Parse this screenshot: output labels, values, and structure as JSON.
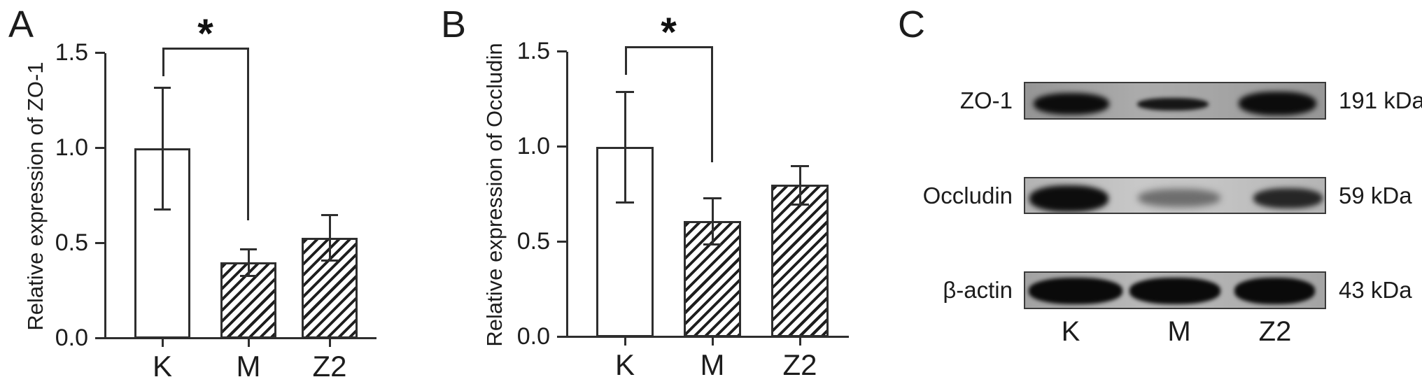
{
  "figure": {
    "background": "#ffffff",
    "ink_color": "#2e2e2e",
    "panel_labels": {
      "a": "A",
      "b": "B",
      "c": "C"
    }
  },
  "chart_data": [
    {
      "type": "bar",
      "panel": "A",
      "title": "",
      "ylabel": "Relative expression of ZO-1",
      "xlabel": "",
      "categories": [
        "K",
        "M",
        "Z2"
      ],
      "values": [
        1.0,
        0.4,
        0.53
      ],
      "errors": [
        0.32,
        0.07,
        0.12
      ],
      "ylim": [
        0,
        1.5
      ],
      "yticks": [
        "0.0",
        "0.5",
        "1.0",
        "1.5"
      ],
      "bar_fills": [
        "plain",
        "hatch",
        "hatch"
      ],
      "grid": false,
      "legend": null,
      "significance": {
        "label": "*",
        "from": "K",
        "to": "M",
        "bracket_y": 1.53,
        "left_drop_to": 1.38,
        "right_drop_to": 0.62
      }
    },
    {
      "type": "bar",
      "panel": "B",
      "title": "",
      "ylabel": "Relative expression of Occludin",
      "xlabel": "",
      "categories": [
        "K",
        "M",
        "Z2"
      ],
      "values": [
        1.0,
        0.61,
        0.8
      ],
      "errors": [
        0.29,
        0.12,
        0.1
      ],
      "ylim": [
        0,
        1.5
      ],
      "yticks": [
        "0.0",
        "0.5",
        "1.0",
        "1.5"
      ],
      "bar_fills": [
        "plain",
        "hatch",
        "hatch"
      ],
      "grid": false,
      "legend": null,
      "significance": {
        "label": "*",
        "from": "K",
        "to": "M",
        "bracket_y": 1.53,
        "left_drop_to": 1.38,
        "right_drop_to": 0.92
      }
    }
  ],
  "blot_panel": {
    "panel": "C",
    "lanes": [
      "K",
      "M",
      "Z2"
    ],
    "rows": [
      {
        "protein": "ZO-1",
        "mw": "191 kDa",
        "strip_shade": "#a2a2a2",
        "bands": [
          {
            "lane": "K",
            "x": 0.028,
            "w": 0.25,
            "y": 0.26,
            "h": 0.58,
            "color": "#0c0c0c",
            "blur": 4
          },
          {
            "lane": "M",
            "x": 0.37,
            "w": 0.236,
            "y": 0.38,
            "h": 0.35,
            "color": "#161616",
            "blur": 3
          },
          {
            "lane": "Z2",
            "x": 0.705,
            "w": 0.258,
            "y": 0.22,
            "h": 0.64,
            "color": "#0c0c0c",
            "blur": 4
          }
        ]
      },
      {
        "protein": "Occludin",
        "mw": "59 kDa",
        "strip_shade": "#c2c2c2",
        "bands": [
          {
            "lane": "K",
            "x": 0.014,
            "w": 0.262,
            "y": 0.18,
            "h": 0.72,
            "color": "#0d0d0d",
            "blur": 4
          },
          {
            "lane": "M",
            "x": 0.373,
            "w": 0.272,
            "y": 0.28,
            "h": 0.5,
            "color": "#6e6e6e",
            "blur": 5
          },
          {
            "lane": "Z2",
            "x": 0.755,
            "w": 0.228,
            "y": 0.26,
            "h": 0.55,
            "color": "#262626",
            "blur": 4
          }
        ]
      },
      {
        "protein": "β-actin",
        "mw": "43 kDa",
        "strip_shade": "#b0b0b0",
        "bands": [
          {
            "lane": "K",
            "x": 0.012,
            "w": 0.31,
            "y": 0.13,
            "h": 0.7,
            "color": "#0a0a0a",
            "blur": 3
          },
          {
            "lane": "M",
            "x": 0.345,
            "w": 0.302,
            "y": 0.13,
            "h": 0.7,
            "color": "#0a0a0a",
            "blur": 3
          },
          {
            "lane": "Z2",
            "x": 0.692,
            "w": 0.266,
            "y": 0.13,
            "h": 0.7,
            "color": "#0a0a0a",
            "blur": 3
          }
        ]
      }
    ]
  }
}
